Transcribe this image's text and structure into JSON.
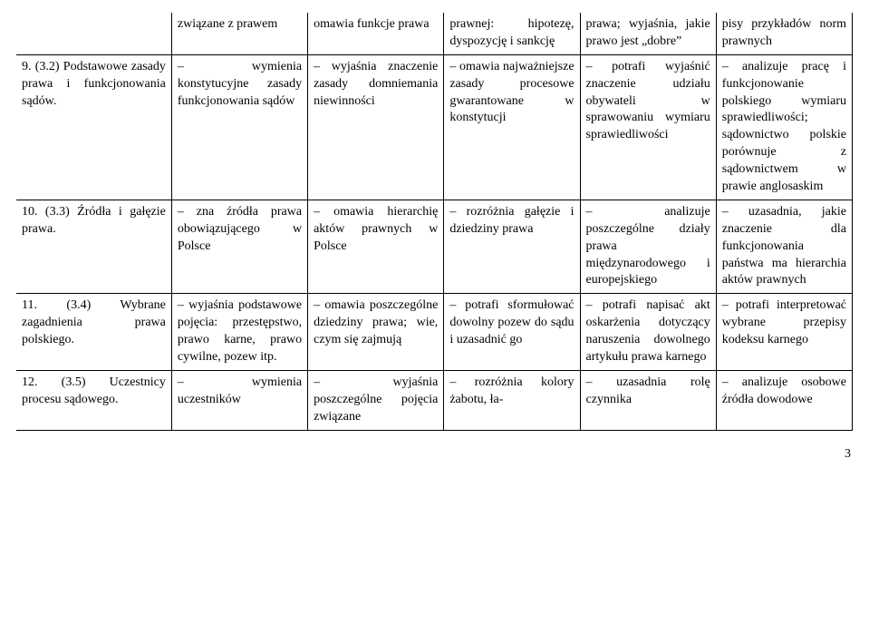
{
  "page_number": "3",
  "rows": [
    {
      "divider": false,
      "cells": [
        "",
        "związane z prawem",
        "omawia funkcje prawa",
        "prawnej: hipotezę, dyspozycję i sankcję",
        "prawa; wyjaśnia, jakie prawo jest „dobre”",
        "pisy przykładów norm prawnych"
      ]
    },
    {
      "divider": true,
      "cells": [
        "9. (3.2) Podstawowe zasady prawa i funkcjonowania sądów.",
        "– wymienia konstytucyjne zasady funkcjonowania sądów",
        "– wyjaśnia znaczenie zasady domniemania niewinności",
        "– omawia najważniejsze zasady procesowe gwarantowane w konstytucji",
        "– potrafi wyjaśnić znaczenie udziału obywateli w sprawowaniu wymiaru sprawiedliwości",
        "– analizuje pracę i funkcjonowanie polskiego wymiaru sprawiedliwości; sądownictwo polskie porównuje z sądownictwem w prawie anglosaskim"
      ]
    },
    {
      "divider": true,
      "cells": [
        "10. (3.3) Źródła i gałęzie prawa.",
        "– zna źródła prawa obowiązującego w Polsce",
        "– omawia hierarchię aktów prawnych w Polsce",
        "– rozróżnia gałęzie i dziedziny prawa",
        "– analizuje poszczególne działy prawa międzynarodowego i europejskiego",
        "– uzasadnia, jakie znaczenie dla funkcjonowania państwa ma hierarchia aktów prawnych"
      ]
    },
    {
      "divider": true,
      "cells": [
        "11. (3.4) Wybrane zagadnienia prawa polskiego.",
        "– wyjaśnia podstawowe pojęcia: przestępstwo, prawo karne, prawo cywilne, pozew itp.",
        "– omawia poszczególne dziedziny prawa; wie, czym się zajmują",
        "– potrafi sformułować dowolny pozew do sądu i uzasadnić go",
        "– potrafi napisać akt oskarżenia dotyczący naruszenia dowolnego artykułu prawa karnego",
        "– potrafi interpretować wybrane przepisy kodeksu karnego"
      ]
    },
    {
      "divider": true,
      "cells": [
        "12. (3.5) Uczestnicy procesu sądowego.",
        "– wymienia uczestników",
        "– wyjaśnia poszczególne pojęcia związane",
        "– rozróżnia kolory żabotu, ła-",
        "– uzasadnia rolę czynnika",
        "– analizuje osobowe źródła dowodowe"
      ]
    }
  ]
}
